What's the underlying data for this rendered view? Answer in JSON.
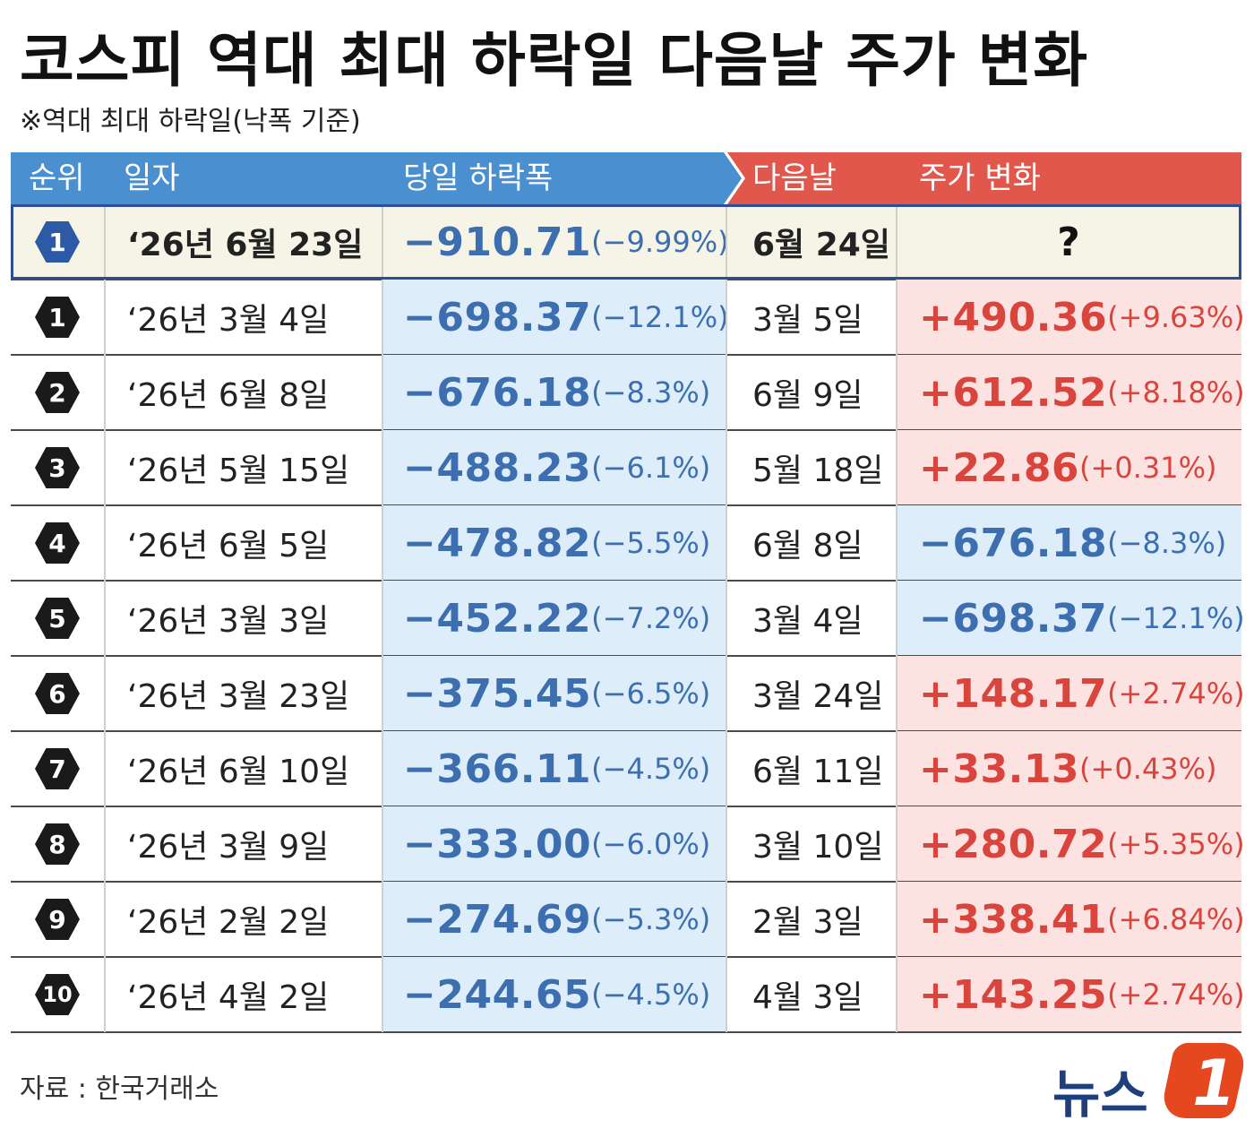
{
  "title": "코스피 역대 최대 하락일 다음날 주가 변화",
  "subtitle": "※역대 최대 하락일(낙폭 기준)",
  "headers": {
    "rank": "순위",
    "date": "일자",
    "drop": "당일 하락폭",
    "next_day": "다음날",
    "change": "주가 변화"
  },
  "source": "자료 : 한국거래소",
  "logo": {
    "text": "뉴스",
    "mark": "1"
  },
  "colors": {
    "blue_header": "#4a8fd0",
    "red_header": "#e2574c",
    "drop_text": "#3d6fb0",
    "rise_text": "#d9443c",
    "highlight_border": "#2d4f99"
  },
  "chart_data": {
    "type": "table",
    "columns": [
      "순위",
      "일자",
      "당일 하락폭",
      "다음날",
      "주가 변화"
    ],
    "rows": [
      {
        "rank": "1",
        "date": "‘26년 6월 23일",
        "drop_value": "−910.71",
        "drop_pct": "(−9.99%)",
        "next_day": "6월 24일",
        "change_value": "?",
        "change_pct": "",
        "direction": "unknown",
        "highlight": true
      },
      {
        "rank": "1",
        "date": "‘26년 3월 4일",
        "drop_value": "−698.37",
        "drop_pct": "(−12.1%)",
        "next_day": "3월 5일",
        "change_value": "+490.36",
        "change_pct": "(+9.63%)",
        "direction": "up"
      },
      {
        "rank": "2",
        "date": "‘26년 6월 8일",
        "drop_value": "−676.18",
        "drop_pct": "(−8.3%)",
        "next_day": "6월 9일",
        "change_value": "+612.52",
        "change_pct": "(+8.18%)",
        "direction": "up"
      },
      {
        "rank": "3",
        "date": "‘26년 5월 15일",
        "drop_value": "−488.23",
        "drop_pct": "(−6.1%)",
        "next_day": "5월 18일",
        "change_value": "+22.86",
        "change_pct": "(+0.31%)",
        "direction": "up"
      },
      {
        "rank": "4",
        "date": "‘26년 6월 5일",
        "drop_value": "−478.82",
        "drop_pct": "(−5.5%)",
        "next_day": "6월 8일",
        "change_value": "−676.18",
        "change_pct": "(−8.3%)",
        "direction": "down"
      },
      {
        "rank": "5",
        "date": "‘26년 3월 3일",
        "drop_value": "−452.22",
        "drop_pct": "(−7.2%)",
        "next_day": "3월 4일",
        "change_value": "−698.37",
        "change_pct": "(−12.1%)",
        "direction": "down"
      },
      {
        "rank": "6",
        "date": "‘26년 3월 23일",
        "drop_value": "−375.45",
        "drop_pct": "(−6.5%)",
        "next_day": "3월 24일",
        "change_value": "+148.17",
        "change_pct": "(+2.74%)",
        "direction": "up"
      },
      {
        "rank": "7",
        "date": "‘26년 6월 10일",
        "drop_value": "−366.11",
        "drop_pct": "(−4.5%)",
        "next_day": "6월 11일",
        "change_value": "+33.13",
        "change_pct": "(+0.43%)",
        "direction": "up"
      },
      {
        "rank": "8",
        "date": "‘26년 3월 9일",
        "drop_value": "−333.00",
        "drop_pct": "(−6.0%)",
        "next_day": "3월 10일",
        "change_value": "+280.72",
        "change_pct": "(+5.35%)",
        "direction": "up"
      },
      {
        "rank": "9",
        "date": "‘26년 2월 2일",
        "drop_value": "−274.69",
        "drop_pct": "(−5.3%)",
        "next_day": "2월 3일",
        "change_value": "+338.41",
        "change_pct": "(+6.84%)",
        "direction": "up"
      },
      {
        "rank": "10",
        "date": "‘26년 4월 2일",
        "drop_value": "−244.65",
        "drop_pct": "(−4.5%)",
        "next_day": "4월 3일",
        "change_value": "+143.25",
        "change_pct": "(+2.74%)",
        "direction": "up"
      }
    ]
  }
}
